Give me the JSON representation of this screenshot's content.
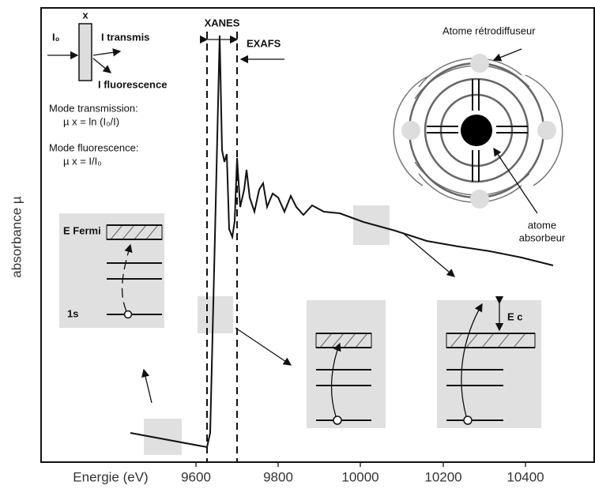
{
  "axis": {
    "x_label": "Energie (eV)",
    "y_label": "absorbance µ",
    "ticks": [
      "9600",
      "9800",
      "10000",
      "10200",
      "10400"
    ]
  },
  "labels": {
    "xanes": "XANES",
    "exafs": "EXAFS"
  },
  "schematic": {
    "sample": "x",
    "i0": "I₀",
    "i_transmis": "I transmis",
    "i_fluorescence": "I fluorescence",
    "mode_transmission": "Mode transmission:",
    "formula_transmission": "µ x = ln (I₀/I)",
    "mode_fluorescence": "Mode fluorescence:",
    "formula_fluorescence": "µ x = I/I₀"
  },
  "atom": {
    "retrodiffuseur": "Atome rétrodiffuseur",
    "absorbeur_1": "atome",
    "absorbeur_2": "absorbeur"
  },
  "panels": {
    "left": {
      "fermi": "E Fermi",
      "core": "1s"
    },
    "right": {
      "ec": "E c"
    }
  }
}
